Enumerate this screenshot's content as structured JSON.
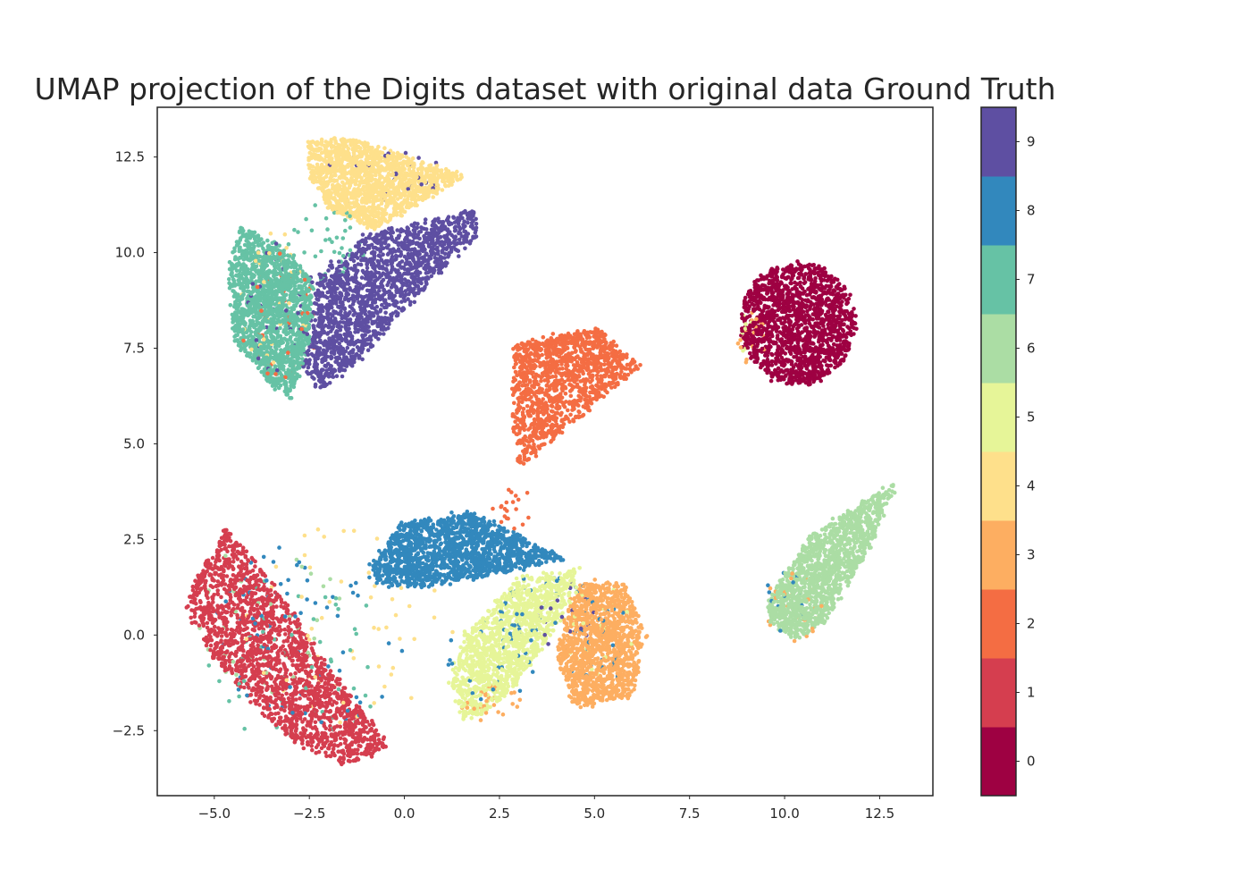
{
  "chart_data": {
    "type": "scatter",
    "title": "UMAP projection of the Digits dataset with original data Ground Truth",
    "xlabel": "",
    "ylabel": "",
    "xlim": [
      -6.5,
      13.9
    ],
    "ylim": [
      -4.2,
      13.8
    ],
    "xticks": [
      -5.0,
      -2.5,
      0.0,
      2.5,
      5.0,
      7.5,
      10.0,
      12.5
    ],
    "xtick_labels": [
      "−5.0",
      "−2.5",
      "0.0",
      "2.5",
      "5.0",
      "7.5",
      "10.0",
      "12.5"
    ],
    "yticks": [
      -2.5,
      0.0,
      2.5,
      5.0,
      7.5,
      10.0,
      12.5
    ],
    "ytick_labels": [
      "−2.5",
      "0.0",
      "2.5",
      "5.0",
      "7.5",
      "10.0",
      "12.5"
    ],
    "grid": false,
    "colormap": "Spectral",
    "colorbar": {
      "labels": [
        "0",
        "1",
        "2",
        "3",
        "4",
        "5",
        "6",
        "7",
        "8",
        "9"
      ],
      "colors": [
        "#9e0142",
        "#d53e4f",
        "#f46d43",
        "#fdae61",
        "#fee08b",
        "#e6f598",
        "#abdda4",
        "#66c2a5",
        "#3288bd",
        "#5e4fa2"
      ]
    },
    "clusters": [
      {
        "label": 0,
        "center": [
          10.35,
          8.15
        ],
        "approx_extent": {
          "x": [
            8.8,
            12.0
          ],
          "y": [
            6.4,
            9.9
          ]
        }
      },
      {
        "label": 1,
        "center": [
          -3.1,
          -0.3
        ],
        "approx_extent": {
          "x": [
            -5.8,
            -0.4
          ],
          "y": [
            -3.4,
            2.8
          ]
        }
      },
      {
        "label": 2,
        "center": [
          4.2,
          6.6
        ],
        "approx_extent": {
          "x": [
            2.7,
            6.2
          ],
          "y": [
            4.3,
            8.0
          ]
        }
      },
      {
        "label": 3,
        "center": [
          5.3,
          -0.2
        ],
        "approx_extent": {
          "x": [
            4.0,
            6.3
          ],
          "y": [
            -1.9,
            1.7
          ]
        }
      },
      {
        "label": 4,
        "center": [
          -0.7,
          11.8
        ],
        "approx_extent": {
          "x": [
            -2.5,
            1.6
          ],
          "y": [
            10.2,
            13.0
          ]
        }
      },
      {
        "label": 5,
        "center": [
          2.8,
          -0.3
        ],
        "approx_extent": {
          "x": [
            1.2,
            4.8
          ],
          "y": [
            -2.3,
            1.7
          ]
        }
      },
      {
        "label": 6,
        "center": [
          11.3,
          1.6
        ],
        "approx_extent": {
          "x": [
            9.5,
            13.1
          ],
          "y": [
            -0.1,
            4.0
          ]
        }
      },
      {
        "label": 7,
        "center": [
          -3.7,
          8.8
        ],
        "approx_extent": {
          "x": [
            -4.6,
            -2.2
          ],
          "y": [
            6.1,
            10.7
          ]
        }
      },
      {
        "label": 8,
        "center": [
          1.2,
          2.1
        ],
        "approx_extent": {
          "x": [
            -0.9,
            4.2
          ],
          "y": [
            1.2,
            3.2
          ]
        }
      },
      {
        "label": 9,
        "center": [
          -0.7,
          9.4
        ],
        "approx_extent": {
          "x": [
            -2.8,
            1.9
          ],
          "y": [
            6.4,
            11.1
          ]
        }
      }
    ]
  }
}
